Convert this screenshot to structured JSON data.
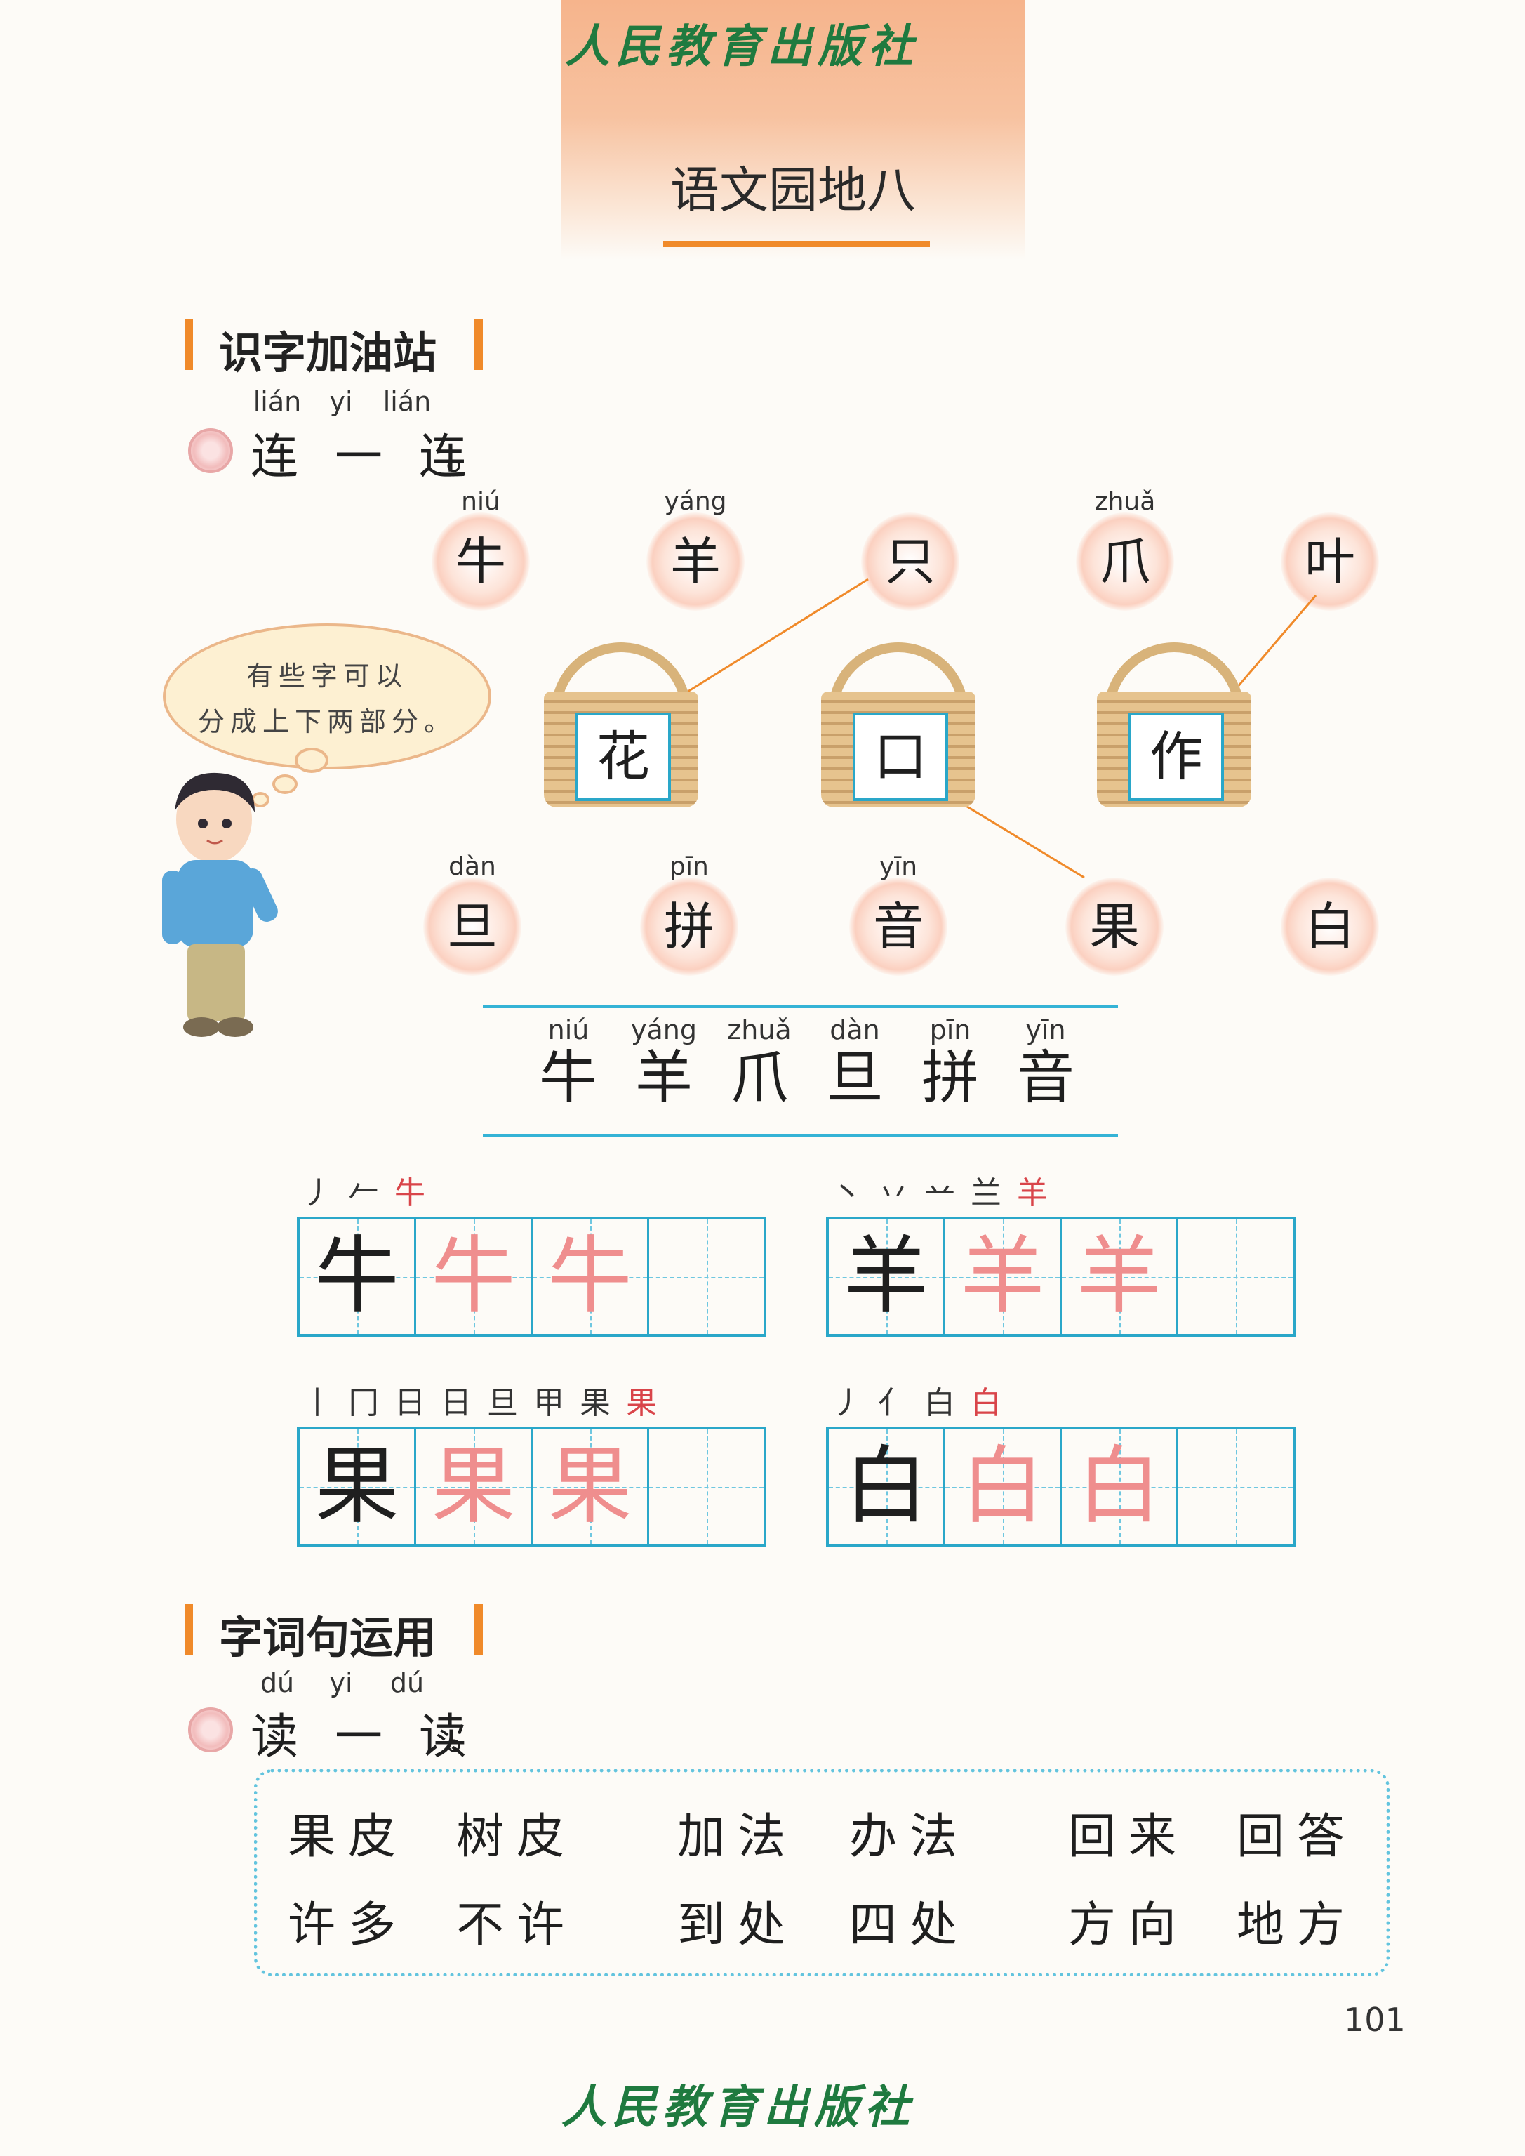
{
  "header": {
    "publisher": "人民教育出版社",
    "title": "语文园地八"
  },
  "section1": {
    "title": "识字加油站",
    "instruction": {
      "pinyin": [
        "lián",
        "yi",
        "lián"
      ],
      "text": "连一连",
      "punct": "。"
    },
    "top_components": [
      {
        "char": "牛",
        "pinyin": "niú"
      },
      {
        "char": "羊",
        "pinyin": "yáng"
      },
      {
        "char": "只",
        "pinyin": ""
      },
      {
        "char": "爪",
        "pinyin": "zhuǎ"
      },
      {
        "char": "叶",
        "pinyin": ""
      }
    ],
    "baskets": [
      "花",
      "口",
      "作"
    ],
    "bottom_components": [
      {
        "char": "旦",
        "pinyin": "dàn"
      },
      {
        "char": "拼",
        "pinyin": "pīn"
      },
      {
        "char": "音",
        "pinyin": "yīn"
      },
      {
        "char": "果",
        "pinyin": ""
      },
      {
        "char": "白",
        "pinyin": ""
      }
    ],
    "bubble": {
      "line1": "有些字可以",
      "line2": "分成上下两部分。"
    },
    "words": [
      {
        "char": "牛",
        "pinyin": "niú"
      },
      {
        "char": "羊",
        "pinyin": "yáng"
      },
      {
        "char": "爪",
        "pinyin": "zhuǎ"
      },
      {
        "char": "旦",
        "pinyin": "dàn"
      },
      {
        "char": "拼",
        "pinyin": "pīn"
      },
      {
        "char": "音",
        "pinyin": "yīn"
      }
    ],
    "writing": [
      {
        "char": "牛",
        "strokes": [
          "丿",
          "𠂉",
          "牛"
        ]
      },
      {
        "char": "羊",
        "strokes": [
          "丶",
          "丷",
          "䒑",
          "兰",
          "羊"
        ]
      },
      {
        "char": "果",
        "strokes": [
          "丨",
          "冂",
          "日",
          "日",
          "旦",
          "甲",
          "果",
          "果"
        ]
      },
      {
        "char": "白",
        "strokes": [
          "丿",
          "亻",
          "白",
          "白"
        ]
      }
    ]
  },
  "section2": {
    "title": "字词句运用",
    "instruction": {
      "pinyin": [
        "dú",
        "yi",
        "dú"
      ],
      "text": "读一读",
      "punct": "。"
    },
    "rows": [
      [
        "果皮",
        "树皮",
        "加法",
        "办法",
        "回来",
        "回答"
      ],
      [
        "许多",
        "不许",
        "到处",
        "四处",
        "方向",
        "地方"
      ]
    ]
  },
  "page_number": "101",
  "colors": {
    "accent": "#f08a2a",
    "grid": "#2aa7c9",
    "publisher": "#1f7a3f",
    "trace": "#ef8e8e"
  }
}
